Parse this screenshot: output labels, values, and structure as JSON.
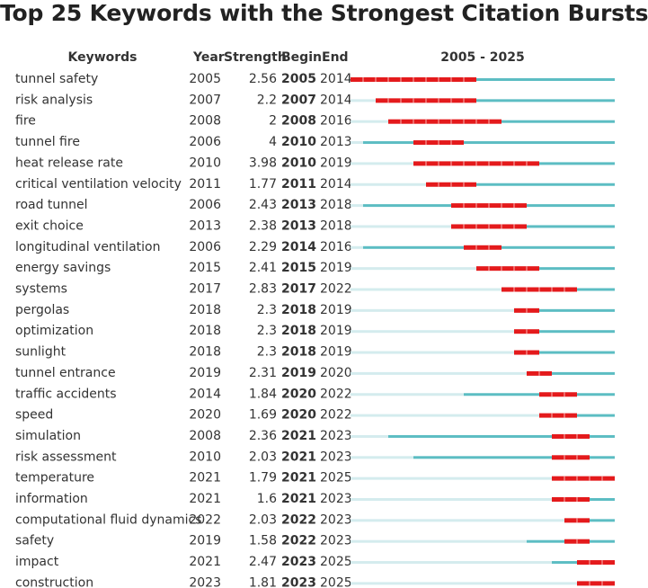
{
  "chart_data": {
    "type": "table",
    "title": "Top 25 Keywords with the Strongest Citation Bursts",
    "columns": [
      "Keywords",
      "Year",
      "Strength",
      "Begin",
      "End",
      "2005 - 2025"
    ],
    "timeline_range": [
      2005,
      2025
    ],
    "colors": {
      "burst": "#e41a1c",
      "active": "#5cbdc3",
      "inactive": "#d4ecee"
    },
    "rows": [
      {
        "keyword": "tunnel safety",
        "year": 2005,
        "strength": "2.56",
        "begin": 2005,
        "end": 2014
      },
      {
        "keyword": "risk analysis",
        "year": 2007,
        "strength": "2.2",
        "begin": 2007,
        "end": 2014
      },
      {
        "keyword": "fire",
        "year": 2008,
        "strength": "2",
        "begin": 2008,
        "end": 2016
      },
      {
        "keyword": "tunnel fire",
        "year": 2006,
        "strength": "4",
        "begin": 2010,
        "end": 2013
      },
      {
        "keyword": "heat release rate",
        "year": 2010,
        "strength": "3.98",
        "begin": 2010,
        "end": 2019
      },
      {
        "keyword": "critical ventilation velocity",
        "year": 2011,
        "strength": "1.77",
        "begin": 2011,
        "end": 2014
      },
      {
        "keyword": "road tunnel",
        "year": 2006,
        "strength": "2.43",
        "begin": 2013,
        "end": 2018
      },
      {
        "keyword": "exit choice",
        "year": 2013,
        "strength": "2.38",
        "begin": 2013,
        "end": 2018
      },
      {
        "keyword": "longitudinal ventilation",
        "year": 2006,
        "strength": "2.29",
        "begin": 2014,
        "end": 2016
      },
      {
        "keyword": "energy savings",
        "year": 2015,
        "strength": "2.41",
        "begin": 2015,
        "end": 2019
      },
      {
        "keyword": "systems",
        "year": 2017,
        "strength": "2.83",
        "begin": 2017,
        "end": 2022
      },
      {
        "keyword": "pergolas",
        "year": 2018,
        "strength": "2.3",
        "begin": 2018,
        "end": 2019
      },
      {
        "keyword": "optimization",
        "year": 2018,
        "strength": "2.3",
        "begin": 2018,
        "end": 2019
      },
      {
        "keyword": "sunlight",
        "year": 2018,
        "strength": "2.3",
        "begin": 2018,
        "end": 2019
      },
      {
        "keyword": "tunnel entrance",
        "year": 2019,
        "strength": "2.31",
        "begin": 2019,
        "end": 2020
      },
      {
        "keyword": "traffic accidents",
        "year": 2014,
        "strength": "1.84",
        "begin": 2020,
        "end": 2022
      },
      {
        "keyword": "speed",
        "year": 2020,
        "strength": "1.69",
        "begin": 2020,
        "end": 2022
      },
      {
        "keyword": "simulation",
        "year": 2008,
        "strength": "2.36",
        "begin": 2021,
        "end": 2023
      },
      {
        "keyword": "risk assessment",
        "year": 2010,
        "strength": "2.03",
        "begin": 2021,
        "end": 2023
      },
      {
        "keyword": "temperature",
        "year": 2021,
        "strength": "1.79",
        "begin": 2021,
        "end": 2025
      },
      {
        "keyword": "information",
        "year": 2021,
        "strength": "1.6",
        "begin": 2021,
        "end": 2023
      },
      {
        "keyword": "computational fluid dynamics",
        "year": 2022,
        "strength": "2.03",
        "begin": 2022,
        "end": 2023
      },
      {
        "keyword": "safety",
        "year": 2019,
        "strength": "1.58",
        "begin": 2022,
        "end": 2023
      },
      {
        "keyword": "impact",
        "year": 2021,
        "strength": "2.47",
        "begin": 2023,
        "end": 2025
      },
      {
        "keyword": "construction",
        "year": 2023,
        "strength": "1.81",
        "begin": 2023,
        "end": 2025
      }
    ]
  }
}
